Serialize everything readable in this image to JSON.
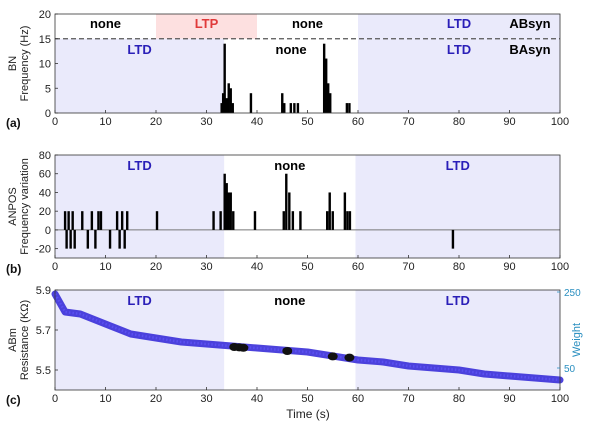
{
  "xaxis": {
    "label": "Time (s)",
    "range": [
      0,
      100
    ],
    "ticks": [
      "0",
      "10",
      "20",
      "30",
      "40",
      "50",
      "60",
      "70",
      "80",
      "90",
      "100"
    ]
  },
  "colors": {
    "ltd_region": "#eaeafb",
    "ltp_region": "#fde0e0",
    "ltd_text": "#2a1fb8",
    "ltp_text": "#e03a3a",
    "none_text": "#000000",
    "bar": "#000000",
    "trace": "#3a2fd8",
    "dense": "#111111",
    "threshold": "#555555",
    "right_axis": "#2a8fc0"
  },
  "chart_data": [
    {
      "type": "bar",
      "panel": "(a)",
      "ylabel_line1": "BN",
      "ylabel_line2": "Frequency (Hz)",
      "ylim": [
        0,
        20
      ],
      "yticks": [
        "0",
        "5",
        "10",
        "15",
        "20"
      ],
      "threshold": 15,
      "regions_top": [
        {
          "x0": 0,
          "x1": 20,
          "label": "none",
          "kind": "none"
        },
        {
          "x0": 20,
          "x1": 40,
          "label": "LTP",
          "kind": "ltp"
        },
        {
          "x0": 40,
          "x1": 60,
          "label": "none",
          "kind": "none"
        },
        {
          "x0": 60,
          "x1": 100,
          "label": "LTD",
          "kind": "ltd"
        }
      ],
      "regions_bottom": [
        {
          "x0": 0,
          "x1": 33.5,
          "label": "LTD",
          "kind": "ltd"
        },
        {
          "x0": 33.5,
          "x1": 60,
          "label": "none",
          "kind": "none"
        },
        {
          "x0": 60,
          "x1": 100,
          "label": "LTD",
          "kind": "ltd"
        }
      ],
      "side_labels": {
        "top": "ABsyn",
        "bottom": "BAsyn"
      },
      "bars": [
        {
          "x": 33.0,
          "y": 2
        },
        {
          "x": 33.3,
          "y": 4
        },
        {
          "x": 33.6,
          "y": 14
        },
        {
          "x": 34.0,
          "y": 3
        },
        {
          "x": 34.4,
          "y": 6
        },
        {
          "x": 34.8,
          "y": 5
        },
        {
          "x": 35.2,
          "y": 2
        },
        {
          "x": 38.8,
          "y": 4
        },
        {
          "x": 45.0,
          "y": 4
        },
        {
          "x": 45.4,
          "y": 2
        },
        {
          "x": 46.7,
          "y": 2
        },
        {
          "x": 47.4,
          "y": 2
        },
        {
          "x": 48.1,
          "y": 2
        },
        {
          "x": 53.3,
          "y": 14
        },
        {
          "x": 53.7,
          "y": 11
        },
        {
          "x": 54.1,
          "y": 6
        },
        {
          "x": 54.5,
          "y": 4
        },
        {
          "x": 57.8,
          "y": 2
        },
        {
          "x": 58.3,
          "y": 2
        }
      ]
    },
    {
      "type": "bar",
      "panel": "(b)",
      "ylabel_line1": "ANPOS",
      "ylabel_line2": "Frequency variation",
      "ylim": [
        -30,
        80
      ],
      "yticks": [
        "-20",
        "0",
        "20",
        "40",
        "60",
        "80"
      ],
      "regions": [
        {
          "x0": 0,
          "x1": 33.5,
          "label": "LTD",
          "kind": "ltd"
        },
        {
          "x0": 33.5,
          "x1": 59.5,
          "label": "none",
          "kind": "none"
        },
        {
          "x0": 59.5,
          "x1": 100,
          "label": "LTD",
          "kind": "ltd"
        }
      ],
      "bars": [
        {
          "x": 2.0,
          "y": 20
        },
        {
          "x": 2.3,
          "y": -20
        },
        {
          "x": 2.7,
          "y": 20
        },
        {
          "x": 3.1,
          "y": -20
        },
        {
          "x": 3.5,
          "y": 20
        },
        {
          "x": 3.9,
          "y": -20
        },
        {
          "x": 5.4,
          "y": 20
        },
        {
          "x": 6.5,
          "y": -20
        },
        {
          "x": 7.3,
          "y": 20
        },
        {
          "x": 8.0,
          "y": -20
        },
        {
          "x": 8.6,
          "y": 20
        },
        {
          "x": 9.1,
          "y": 20
        },
        {
          "x": 10.9,
          "y": -20
        },
        {
          "x": 12.3,
          "y": 20
        },
        {
          "x": 12.8,
          "y": -20
        },
        {
          "x": 13.3,
          "y": 20
        },
        {
          "x": 13.8,
          "y": -20
        },
        {
          "x": 14.3,
          "y": 20
        },
        {
          "x": 20.2,
          "y": 20
        },
        {
          "x": 31.4,
          "y": 20
        },
        {
          "x": 32.8,
          "y": 20
        },
        {
          "x": 33.6,
          "y": 60
        },
        {
          "x": 34.0,
          "y": 50
        },
        {
          "x": 34.4,
          "y": 40
        },
        {
          "x": 34.8,
          "y": 40
        },
        {
          "x": 35.3,
          "y": 20
        },
        {
          "x": 39.6,
          "y": 20
        },
        {
          "x": 45.3,
          "y": 20
        },
        {
          "x": 45.8,
          "y": 60
        },
        {
          "x": 46.4,
          "y": 40
        },
        {
          "x": 47.1,
          "y": 20
        },
        {
          "x": 48.6,
          "y": 20
        },
        {
          "x": 53.9,
          "y": 20
        },
        {
          "x": 54.4,
          "y": 40
        },
        {
          "x": 55.0,
          "y": 20
        },
        {
          "x": 57.4,
          "y": 40
        },
        {
          "x": 57.9,
          "y": 20
        },
        {
          "x": 58.4,
          "y": 20
        },
        {
          "x": 78.8,
          "y": -20
        }
      ]
    },
    {
      "type": "line",
      "panel": "(c)",
      "ylabel_line1": "ABm",
      "ylabel_line2": "Resistance (KΩ)",
      "ylim": [
        5.4,
        5.9
      ],
      "yticks": [
        "5.5",
        "5.7",
        "5.9"
      ],
      "y2label": "Weight",
      "y2ticks": [
        "50",
        "250"
      ],
      "regions": [
        {
          "x0": 0,
          "x1": 33.5,
          "label": "LTD",
          "kind": "ltd"
        },
        {
          "x0": 33.5,
          "x1": 59.5,
          "label": "none",
          "kind": "none"
        },
        {
          "x0": 59.5,
          "x1": 100,
          "label": "LTD",
          "kind": "ltd"
        }
      ],
      "x": [
        0,
        2,
        5,
        10,
        15,
        20,
        25,
        30,
        35,
        40,
        45,
        50,
        55,
        60,
        65,
        70,
        75,
        80,
        85,
        90,
        95,
        100
      ],
      "y": [
        5.88,
        5.79,
        5.78,
        5.73,
        5.68,
        5.66,
        5.64,
        5.63,
        5.62,
        5.61,
        5.6,
        5.59,
        5.57,
        5.55,
        5.54,
        5.52,
        5.51,
        5.5,
        5.48,
        5.47,
        5.46,
        5.45
      ],
      "dense_points": [
        {
          "x": 35.5,
          "y": 5.615
        },
        {
          "x": 36.5,
          "y": 5.613
        },
        {
          "x": 37.3,
          "y": 5.611
        },
        {
          "x": 46.0,
          "y": 5.595
        },
        {
          "x": 55.0,
          "y": 5.568
        },
        {
          "x": 58.3,
          "y": 5.562
        }
      ]
    }
  ]
}
